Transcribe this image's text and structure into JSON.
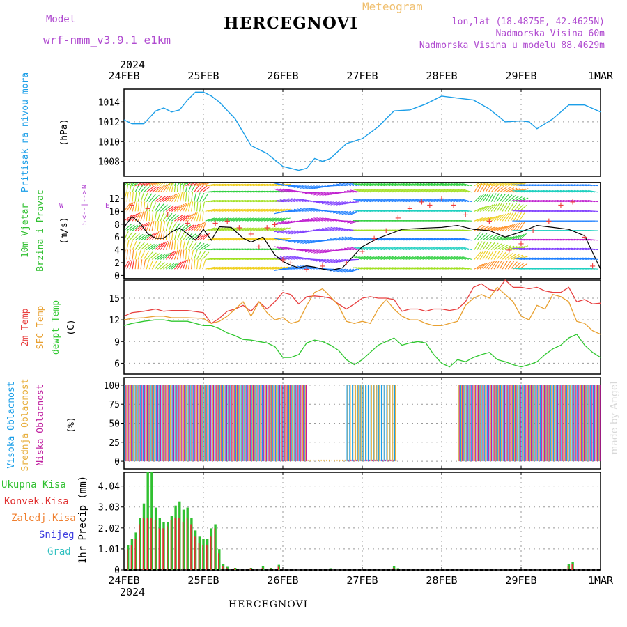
{
  "header": {
    "title": "HERCEGNOVI",
    "model_label": "Model",
    "model_value": "wrf-nmm_v3.9.1 e1km",
    "meteogram_label": "Meteogram",
    "lonlat": "lon,lat (18.4875E, 42.4625N)",
    "elevation": "Nadmorska Visina 60m",
    "model_elevation": "Nadmorska Visina u modelu 88.4629m",
    "footer_title": "HERCEGNOVI",
    "credit": "made by Angel"
  },
  "colors": {
    "pressure": "#1a9ee8",
    "wind_speed": "#000000",
    "gust": "#f04040",
    "t2m": "#e84040",
    "tsfc": "#e8a030",
    "dewpt": "#30c830",
    "cloud_high": "#1a9ee8",
    "cloud_mid": "#e8b040",
    "cloud_low": "#c020a0",
    "precip_total": "#30c030",
    "precip_conv": "#e03030",
    "precip_frozen": "#f08030",
    "snow": "#4040e0",
    "graupel": "#30c0c0",
    "axis_label_wind": "#30c030",
    "compass": "#b040d0"
  },
  "time_axis": {
    "year": "2024",
    "ticks": [
      "24FEB",
      "25FEB",
      "26FEB",
      "27FEB",
      "28FEB",
      "29FEB",
      "1MAR"
    ]
  },
  "chart_data": [
    {
      "type": "line",
      "panel": "pressure",
      "axis_title": "Pritisak na nivou mora",
      "unit": "(hPa)",
      "ylim": [
        1006.5,
        1015.3
      ],
      "yticks": [
        1008,
        1010,
        1012,
        1014
      ],
      "x_days": [
        0,
        0.1,
        0.25,
        0.4,
        0.5,
        0.6,
        0.7,
        0.8,
        0.9,
        1.0,
        1.1,
        1.2,
        1.4,
        1.6,
        1.8,
        2.0,
        2.2,
        2.3,
        2.4,
        2.5,
        2.6,
        2.8,
        3.0,
        3.2,
        3.4,
        3.6,
        3.8,
        4.0,
        4.2,
        4.4,
        4.6,
        4.8,
        5.0,
        5.1,
        5.2,
        5.3,
        5.4,
        5.6,
        5.8,
        6.0
      ],
      "values": [
        1012.2,
        1011.8,
        1011.8,
        1013.1,
        1013.4,
        1013.0,
        1013.2,
        1014.2,
        1015.0,
        1015.0,
        1014.6,
        1014.0,
        1012.3,
        1009.6,
        1008.8,
        1007.5,
        1007.1,
        1007.3,
        1008.3,
        1008.0,
        1008.3,
        1009.8,
        1010.3,
        1011.5,
        1013.1,
        1013.2,
        1013.8,
        1014.6,
        1014.4,
        1014.2,
        1013.3,
        1012.0,
        1012.1,
        1012.0,
        1011.3,
        1011.8,
        1012.3,
        1013.7,
        1013.7,
        1013.0
      ],
      "series_name": "",
      "grid": true
    },
    {
      "type": "line",
      "panel": "wind",
      "axis_title_1": "10m Vjetar",
      "axis_title_2": "Brzina i Pravac",
      "unit": "(m/s)",
      "compass": {
        "n": "N",
        "s": "S",
        "e": "E",
        "w": "W",
        "line": "<--|-->"
      },
      "ylim": [
        -0.5,
        14.5
      ],
      "yticks": [
        0,
        2,
        4,
        6,
        8,
        10,
        12
      ],
      "series": [
        {
          "name": "",
          "x_days": [
            0,
            0.1,
            0.2,
            0.3,
            0.4,
            0.5,
            0.6,
            0.7,
            0.8,
            0.9,
            1.0,
            1.1,
            1.2,
            1.35,
            1.5,
            1.6,
            1.75,
            1.9,
            2.0,
            2.1,
            2.2,
            2.3,
            2.4,
            2.5,
            2.6,
            2.75,
            3.0,
            3.2,
            3.5,
            3.8,
            4.0,
            4.2,
            4.4,
            4.6,
            4.8,
            5.0,
            5.2,
            5.4,
            5.6,
            5.8,
            6.0
          ],
          "values": [
            7.5,
            9.2,
            8.2,
            6.5,
            5.8,
            5.8,
            6.8,
            7.4,
            6.5,
            5.5,
            7.2,
            5.5,
            7.6,
            7.5,
            5.8,
            5.2,
            6.0,
            3.2,
            2.2,
            1.6,
            1.2,
            1.5,
            1.3,
            1.0,
            0.8,
            1.2,
            4.5,
            5.8,
            7.2,
            7.4,
            7.5,
            7.8,
            7.2,
            7.0,
            6.0,
            6.8,
            7.8,
            7.5,
            7.2,
            6.2,
            1.0
          ]
        },
        {
          "name": "",
          "type": "scatter",
          "x_days": [
            0.1,
            0.3,
            0.55,
            0.8,
            1.15,
            1.3,
            1.45,
            1.6,
            1.7,
            1.8,
            1.9,
            2.0,
            2.1,
            2.3,
            2.5,
            2.8,
            3.0,
            3.15,
            3.3,
            3.45,
            3.6,
            3.75,
            3.85,
            4.0,
            4.15,
            4.3,
            4.6,
            4.85,
            5.0,
            5.15,
            5.35,
            5.5,
            5.65,
            5.8,
            5.9
          ],
          "values": [
            11.0,
            10.5,
            9.5,
            8.2,
            8.2,
            8.5,
            7.5,
            6.5,
            4.5,
            7.5,
            8.0,
            2.5,
            2.0,
            1.0,
            1.5,
            2.0,
            3.8,
            5.8,
            7.0,
            9.0,
            10.5,
            11.5,
            11.0,
            12.0,
            11.0,
            9.5,
            8.5,
            4.0,
            5.0,
            7.0,
            8.5,
            11.0,
            11.5,
            6.0,
            1.5
          ]
        }
      ],
      "vectors_note": "wind direction arrows"
    },
    {
      "type": "line",
      "panel": "temperature",
      "axis_title_1": "2m Temp",
      "axis_title_2": "SFC Temp",
      "axis_title_3": "dewpt Temp",
      "unit": "(C)",
      "ylim": [
        4.5,
        17.5
      ],
      "yticks": [
        6,
        9,
        12,
        15
      ],
      "x_days": [
        0,
        0.1,
        0.25,
        0.4,
        0.5,
        0.6,
        0.8,
        1.0,
        1.1,
        1.2,
        1.3,
        1.4,
        1.5,
        1.6,
        1.7,
        1.8,
        1.9,
        2.0,
        2.1,
        2.2,
        2.3,
        2.4,
        2.5,
        2.6,
        2.7,
        2.8,
        2.9,
        3.0,
        3.1,
        3.2,
        3.3,
        3.4,
        3.5,
        3.6,
        3.7,
        3.8,
        3.9,
        4.0,
        4.1,
        4.2,
        4.3,
        4.4,
        4.5,
        4.6,
        4.7,
        4.8,
        4.9,
        5.0,
        5.1,
        5.2,
        5.3,
        5.4,
        5.5,
        5.6,
        5.7,
        5.8,
        5.9,
        6.0
      ],
      "series": [
        {
          "name": "",
          "values": [
            12.5,
            13.0,
            13.2,
            13.5,
            13.2,
            13.3,
            13.3,
            13.0,
            11.5,
            12.2,
            13.2,
            13.5,
            14.0,
            13.2,
            14.5,
            13.5,
            14.5,
            15.8,
            15.5,
            14.2,
            15.2,
            15.3,
            15.2,
            15.0,
            14.2,
            13.5,
            14.2,
            15.0,
            15.2,
            15.0,
            15.0,
            14.8,
            13.2,
            13.5,
            13.5,
            13.2,
            13.5,
            13.5,
            13.3,
            13.5,
            14.5,
            16.5,
            17.0,
            16.2,
            16.0,
            17.5,
            16.5,
            16.5,
            16.3,
            16.5,
            16.0,
            15.8,
            15.8,
            16.5,
            14.5,
            14.8,
            14.2,
            14.3
          ]
        },
        {
          "name": "",
          "values": [
            12.0,
            12.2,
            12.3,
            12.5,
            12.5,
            12.3,
            12.3,
            12.2,
            11.5,
            11.8,
            12.5,
            13.5,
            14.5,
            12.5,
            14.5,
            13.0,
            12.0,
            12.3,
            11.5,
            11.8,
            14.0,
            15.8,
            16.3,
            15.2,
            14.0,
            11.8,
            11.5,
            11.8,
            11.5,
            13.5,
            14.8,
            13.5,
            12.5,
            12.0,
            12.0,
            11.5,
            11.2,
            11.2,
            11.5,
            11.8,
            14.0,
            15.0,
            15.5,
            15.0,
            16.5,
            15.5,
            14.5,
            12.5,
            12.0,
            14.0,
            13.5,
            15.5,
            15.2,
            14.5,
            11.8,
            11.5,
            10.5,
            10.0
          ]
        },
        {
          "name": "",
          "values": [
            11.2,
            11.5,
            11.8,
            12.0,
            12.0,
            11.8,
            11.8,
            11.2,
            11.2,
            10.8,
            10.2,
            9.8,
            9.3,
            9.2,
            9.0,
            8.8,
            8.3,
            6.8,
            6.8,
            7.2,
            8.8,
            9.2,
            9.0,
            8.5,
            7.8,
            6.5,
            5.8,
            6.5,
            7.5,
            8.5,
            9.0,
            9.5,
            8.5,
            8.8,
            9.0,
            8.8,
            7.2,
            6.0,
            5.5,
            6.5,
            6.2,
            6.8,
            7.2,
            7.5,
            6.5,
            6.2,
            5.8,
            5.5,
            5.8,
            6.2,
            7.2,
            8.0,
            8.5,
            9.5,
            10.0,
            8.5,
            7.5,
            6.8
          ]
        }
      ],
      "grid": true
    },
    {
      "type": "bar",
      "panel": "clouds",
      "axis_title_1": "Visoka Oblacnost",
      "axis_title_2": "Srednja Oblacnost",
      "axis_title_3": "Niska Oblacnost",
      "unit": "(%)",
      "ylim": [
        0,
        100
      ],
      "yticks": [
        0,
        25,
        50,
        75,
        100
      ],
      "segments": [
        {
          "from": 0.0,
          "to": 2.3,
          "high": 100,
          "mid": 100,
          "low": 100
        },
        {
          "from": 2.3,
          "to": 2.8,
          "high": 0,
          "mid": 2,
          "low": 0
        },
        {
          "from": 2.8,
          "to": 3.45,
          "high": 100,
          "mid": 100,
          "low": 2
        },
        {
          "from": 3.45,
          "to": 3.7,
          "high": 0,
          "mid": 0,
          "low": 0
        },
        {
          "from": 3.7,
          "to": 4.2,
          "high": 0,
          "mid": 0,
          "low": 0
        },
        {
          "from": 4.2,
          "to": 6.0,
          "high": 100,
          "mid": 100,
          "low": 100
        }
      ],
      "grid": true
    },
    {
      "type": "bar",
      "panel": "precip",
      "legend": [
        "Ukupna Kisa",
        "Konvek.Kisa",
        "Zaledj.Kisa",
        "Snijeg",
        "Grad"
      ],
      "axis_title": "1hr Precip (mm)",
      "ylim": [
        0,
        4.7
      ],
      "yticks": [
        0,
        1.01,
        2.02,
        3.03,
        4.04
      ],
      "ytick_labels": [
        "0",
        "1.01",
        "2.02",
        "3.03",
        "4.04"
      ],
      "x_days": [
        0.05,
        0.1,
        0.15,
        0.2,
        0.25,
        0.3,
        0.35,
        0.4,
        0.45,
        0.5,
        0.55,
        0.6,
        0.65,
        0.7,
        0.75,
        0.8,
        0.85,
        0.9,
        0.95,
        1.0,
        1.05,
        1.1,
        1.15,
        1.2,
        1.25,
        1.3,
        1.4,
        1.6,
        1.75,
        1.85,
        1.95,
        2.6,
        3.4,
        3.45,
        5.6,
        5.65
      ],
      "total": [
        1.2,
        1.5,
        1.8,
        2.5,
        3.2,
        4.7,
        4.7,
        3.0,
        2.5,
        2.3,
        2.3,
        2.6,
        3.1,
        3.3,
        2.9,
        3.0,
        2.5,
        1.9,
        1.6,
        1.5,
        1.5,
        2.0,
        2.2,
        1.0,
        0.3,
        0.15,
        0.1,
        0.1,
        0.2,
        0.1,
        0.25,
        0.05,
        0.2,
        0.05,
        0.3,
        0.4
      ],
      "convective": [
        1.0,
        1.2,
        1.5,
        2.2,
        2.5,
        2.5,
        2.5,
        2.4,
        2.0,
        2.0,
        2.1,
        2.4,
        2.5,
        2.5,
        2.3,
        2.5,
        2.2,
        1.6,
        1.3,
        1.2,
        1.2,
        1.6,
        2.0,
        0.8,
        0.2,
        0.1,
        0.05,
        0.05,
        0.1,
        0.05,
        0.15,
        0.02,
        0.1,
        0.02,
        0.2,
        0.3
      ],
      "grid": true
    }
  ]
}
